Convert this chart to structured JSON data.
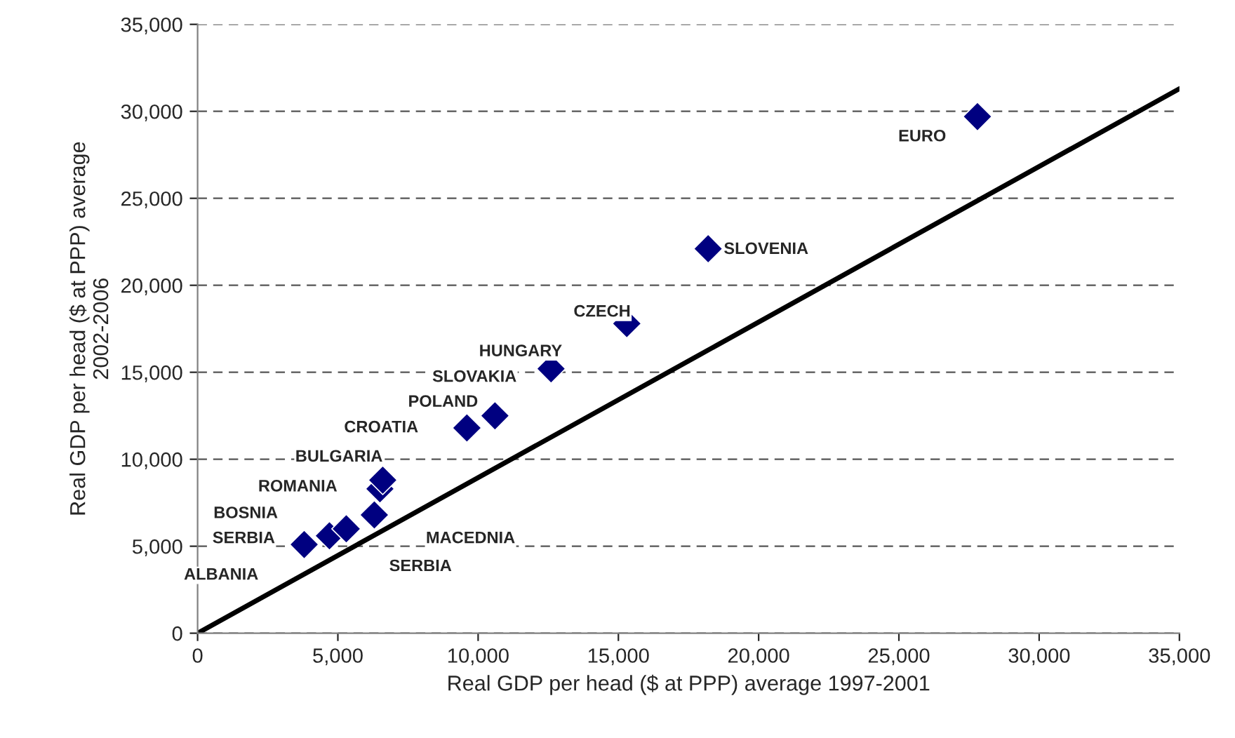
{
  "chart_data": {
    "type": "scatter",
    "xlabel": "Real GDP per head ($ at PPP) average 1997-2001",
    "ylabel": "Real GDP per head ($ at PPP) average\n2002-2006",
    "xlim": [
      0,
      35000
    ],
    "xticks": [
      {
        "value": 0,
        "label": "0"
      },
      {
        "value": 5000,
        "label": "5,000"
      },
      {
        "value": 10000,
        "label": "10,000"
      },
      {
        "value": 15000,
        "label": "15,000"
      },
      {
        "value": 20000,
        "label": "20,000"
      },
      {
        "value": 25000,
        "label": "25,000"
      },
      {
        "value": 30000,
        "label": "30,000"
      },
      {
        "value": 35000,
        "label": "35,000"
      }
    ],
    "ylim": [
      0,
      35000
    ],
    "yticks": [
      {
        "value": 0,
        "label": "0"
      },
      {
        "value": 5000,
        "label": "5,000"
      },
      {
        "value": 10000,
        "label": "10,000"
      },
      {
        "value": 15000,
        "label": "15,000"
      },
      {
        "value": 20000,
        "label": "20,000"
      },
      {
        "value": 25000,
        "label": "25,000"
      },
      {
        "value": 30000,
        "label": "30,000"
      },
      {
        "value": 35000,
        "label": "35,000"
      }
    ],
    "grid": "y",
    "legend": false,
    "series": [
      {
        "type": "scatter",
        "color": "#000080",
        "marker": "diamond",
        "x": [
          3800,
          4700,
          5300,
          6300,
          6500,
          6600,
          9600,
          10600,
          12600,
          15300,
          18200,
          27800
        ],
        "values": [
          5100,
          5600,
          6000,
          6800,
          8300,
          8800,
          11800,
          12500,
          15200,
          17800,
          22100,
          29700
        ]
      },
      {
        "type": "line",
        "color": "#000000",
        "marker": "none",
        "line_style": "solid",
        "x": [
          0,
          35000
        ],
        "values": [
          0,
          31300
        ]
      }
    ],
    "annotations": [
      "EURO",
      "SLOVENIA",
      "CZECH",
      "HUNGARY",
      "SLOVAKIA",
      "POLAND",
      "CROATIA",
      "BULGARIA",
      "ROMANIA",
      "BOSNIA",
      "SERBIA",
      "ALBANIA",
      "MACEDNIA",
      "SERBIA"
    ]
  }
}
